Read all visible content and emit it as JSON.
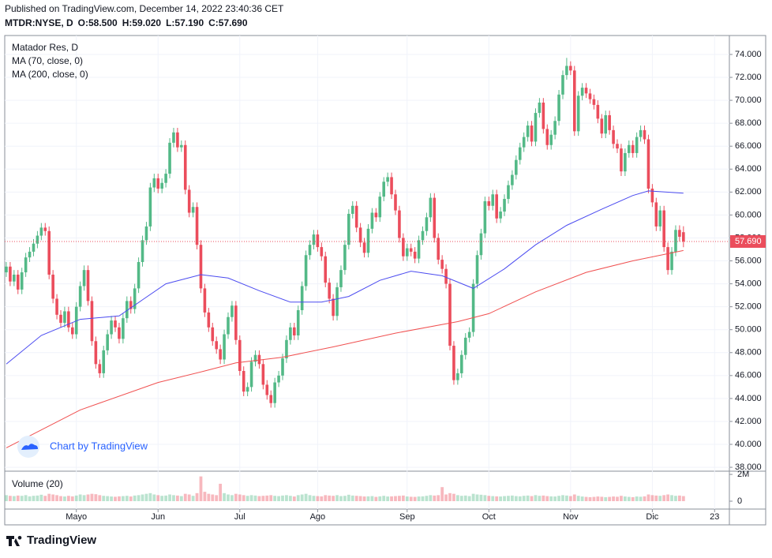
{
  "header": {
    "published": "Published on TradingView.com, December 14, 2022 23:40:36 CET",
    "symbol": "MTDR:NYSE, D",
    "ohlc_labels": [
      "O:58.500",
      "H:59.020",
      "L:57.190",
      "C:57.690"
    ]
  },
  "footer": {
    "brand": "TradingView"
  },
  "chart_data": {
    "type": "candlestick",
    "title": "Matador Res, D",
    "watermark": "Chart by TradingView",
    "up_color": "#53b987",
    "down_color": "#eb4d5c",
    "grid": true,
    "ylim": [
      37.73,
      75.65
    ],
    "yticks": [
      {
        "value": 38,
        "label": "38.000"
      },
      {
        "value": 40,
        "label": "40.000"
      },
      {
        "value": 42,
        "label": "42.000"
      },
      {
        "value": 44,
        "label": "44.000"
      },
      {
        "value": 46,
        "label": "46.000"
      },
      {
        "value": 48,
        "label": "48.000"
      },
      {
        "value": 50,
        "label": "50.000"
      },
      {
        "value": 52,
        "label": "52.000"
      },
      {
        "value": 54,
        "label": "54.000"
      },
      {
        "value": 56,
        "label": "56.000"
      },
      {
        "value": 58,
        "label": "58.000"
      },
      {
        "value": 60,
        "label": "60.000"
      },
      {
        "value": 62,
        "label": "62.000"
      },
      {
        "value": 64,
        "label": "64.000"
      },
      {
        "value": 66,
        "label": "66.000"
      },
      {
        "value": 68,
        "label": "68.000"
      },
      {
        "value": 70,
        "label": "70.000"
      },
      {
        "value": 72,
        "label": "72.000"
      },
      {
        "value": 74,
        "label": "74.000"
      }
    ],
    "xlim": [
      -0.4,
      185.8
    ],
    "xticks": [
      {
        "value": 18,
        "label": "Mayo"
      },
      {
        "value": 39,
        "label": "Jun"
      },
      {
        "value": 60,
        "label": "Jul"
      },
      {
        "value": 80,
        "label": "Ago"
      },
      {
        "value": 103,
        "label": "Sep"
      },
      {
        "value": 124,
        "label": "Oct"
      },
      {
        "value": 145,
        "label": "Nov"
      },
      {
        "value": 166,
        "label": "Dic"
      },
      {
        "value": 182,
        "label": "23"
      }
    ],
    "candles": [
      [
        55.0,
        55.9,
        54.6,
        55.5
      ],
      [
        55.5,
        55.9,
        53.8,
        54.2
      ],
      [
        54.2,
        55.2,
        53.8,
        54.8
      ],
      [
        54.8,
        55.2,
        53.1,
        53.5
      ],
      [
        53.5,
        55.4,
        53.1,
        55.0
      ],
      [
        55.0,
        56.7,
        54.6,
        56.3
      ],
      [
        56.3,
        57.2,
        55.9,
        56.8
      ],
      [
        56.8,
        57.9,
        56.4,
        57.5
      ],
      [
        57.5,
        58.6,
        57.1,
        58.2
      ],
      [
        58.2,
        59.3,
        57.8,
        58.9
      ],
      [
        58.9,
        59.3,
        58.2,
        58.6
      ],
      [
        58.6,
        59.0,
        54.4,
        54.8
      ],
      [
        54.8,
        55.2,
        52.3,
        52.7
      ],
      [
        52.7,
        53.1,
        50.9,
        51.3
      ],
      [
        51.3,
        51.7,
        50.2,
        50.6
      ],
      [
        50.6,
        52.0,
        50.2,
        51.6
      ],
      [
        51.6,
        52.0,
        49.8,
        50.2
      ],
      [
        50.2,
        50.6,
        49.2,
        49.6
      ],
      [
        49.6,
        52.4,
        49.2,
        52.0
      ],
      [
        52.0,
        54.2,
        51.6,
        53.8
      ],
      [
        53.8,
        55.6,
        53.4,
        55.2
      ],
      [
        55.2,
        55.6,
        52.1,
        52.5
      ],
      [
        52.5,
        52.9,
        48.6,
        49.0
      ],
      [
        49.0,
        49.4,
        46.6,
        47.0
      ],
      [
        47.0,
        47.4,
        45.8,
        46.2
      ],
      [
        46.2,
        48.6,
        45.8,
        48.2
      ],
      [
        48.2,
        50.0,
        47.8,
        49.6
      ],
      [
        49.6,
        51.2,
        49.2,
        50.8
      ],
      [
        50.8,
        51.2,
        49.8,
        50.2
      ],
      [
        50.2,
        50.6,
        48.8,
        49.2
      ],
      [
        49.2,
        51.4,
        48.8,
        51.0
      ],
      [
        51.0,
        52.9,
        50.6,
        52.5
      ],
      [
        52.5,
        52.9,
        51.4,
        51.8
      ],
      [
        51.8,
        54.0,
        51.4,
        53.6
      ],
      [
        53.6,
        56.3,
        53.2,
        55.9
      ],
      [
        55.9,
        58.2,
        55.5,
        57.8
      ],
      [
        57.8,
        59.4,
        57.4,
        59.0
      ],
      [
        59.0,
        62.8,
        58.6,
        62.4
      ],
      [
        62.4,
        63.6,
        62.0,
        63.2
      ],
      [
        63.2,
        63.6,
        61.9,
        62.3
      ],
      [
        62.3,
        63.2,
        61.9,
        62.8
      ],
      [
        62.8,
        64.0,
        62.4,
        63.6
      ],
      [
        63.6,
        66.7,
        63.2,
        66.3
      ],
      [
        66.3,
        67.6,
        65.9,
        67.2
      ],
      [
        67.2,
        67.6,
        65.5,
        65.9
      ],
      [
        65.9,
        66.5,
        65.5,
        66.1
      ],
      [
        66.1,
        66.5,
        61.8,
        62.2
      ],
      [
        62.2,
        62.6,
        59.8,
        60.2
      ],
      [
        60.2,
        61.1,
        59.8,
        60.7
      ],
      [
        60.7,
        61.1,
        57.0,
        57.4
      ],
      [
        57.4,
        57.8,
        53.2,
        53.6
      ],
      [
        53.6,
        54.0,
        51.1,
        51.5
      ],
      [
        51.5,
        51.9,
        49.8,
        50.2
      ],
      [
        50.2,
        50.6,
        48.6,
        49.0
      ],
      [
        49.0,
        49.4,
        47.9,
        48.3
      ],
      [
        48.3,
        48.7,
        47.0,
        47.4
      ],
      [
        47.4,
        50.0,
        47.0,
        49.6
      ],
      [
        49.6,
        51.5,
        49.2,
        51.1
      ],
      [
        51.1,
        52.5,
        50.7,
        52.1
      ],
      [
        52.1,
        52.5,
        48.7,
        49.1
      ],
      [
        49.1,
        49.5,
        46.0,
        46.4
      ],
      [
        46.4,
        46.8,
        44.2,
        44.6
      ],
      [
        44.6,
        45.4,
        44.2,
        45.0
      ],
      [
        45.0,
        47.6,
        44.6,
        47.2
      ],
      [
        47.2,
        48.2,
        46.8,
        47.8
      ],
      [
        47.8,
        48.2,
        46.6,
        47.0
      ],
      [
        47.0,
        47.4,
        44.8,
        45.2
      ],
      [
        45.2,
        45.6,
        43.9,
        44.3
      ],
      [
        44.3,
        44.7,
        43.2,
        43.6
      ],
      [
        43.6,
        45.8,
        43.2,
        45.4
      ],
      [
        45.4,
        46.4,
        45.0,
        46.0
      ],
      [
        46.0,
        47.9,
        45.6,
        47.5
      ],
      [
        47.5,
        49.5,
        47.1,
        49.1
      ],
      [
        49.1,
        50.6,
        48.7,
        50.2
      ],
      [
        50.2,
        50.6,
        49.1,
        49.5
      ],
      [
        49.5,
        52.1,
        49.1,
        51.7
      ],
      [
        51.7,
        54.2,
        51.3,
        53.8
      ],
      [
        53.8,
        56.9,
        53.4,
        56.5
      ],
      [
        56.5,
        57.8,
        56.1,
        57.4
      ],
      [
        57.4,
        58.7,
        57.0,
        58.3
      ],
      [
        58.3,
        58.7,
        56.8,
        57.2
      ],
      [
        57.2,
        57.6,
        56.0,
        56.4
      ],
      [
        56.4,
        56.8,
        53.7,
        54.1
      ],
      [
        54.1,
        54.5,
        52.3,
        52.7
      ],
      [
        52.7,
        53.1,
        50.8,
        51.2
      ],
      [
        51.2,
        54.1,
        50.8,
        53.7
      ],
      [
        53.7,
        55.6,
        53.3,
        55.2
      ],
      [
        55.2,
        57.8,
        54.8,
        57.4
      ],
      [
        57.4,
        60.5,
        57.0,
        60.1
      ],
      [
        60.1,
        61.2,
        59.7,
        60.8
      ],
      [
        60.8,
        61.2,
        58.5,
        58.9
      ],
      [
        58.9,
        59.3,
        57.2,
        57.6
      ],
      [
        57.6,
        58.0,
        56.3,
        56.7
      ],
      [
        56.7,
        59.2,
        56.3,
        58.8
      ],
      [
        58.8,
        60.6,
        58.4,
        60.2
      ],
      [
        60.2,
        60.6,
        59.4,
        59.8
      ],
      [
        59.8,
        62.0,
        59.4,
        61.6
      ],
      [
        61.6,
        63.3,
        61.2,
        62.9
      ],
      [
        62.9,
        63.7,
        62.5,
        63.3
      ],
      [
        63.3,
        63.7,
        61.4,
        61.8
      ],
      [
        61.8,
        62.2,
        60.0,
        60.4
      ],
      [
        60.4,
        60.8,
        57.6,
        58.0
      ],
      [
        58.0,
        58.4,
        56.0,
        56.4
      ],
      [
        56.4,
        57.5,
        56.0,
        57.1
      ],
      [
        57.1,
        57.5,
        56.4,
        56.8
      ],
      [
        56.8,
        57.2,
        55.8,
        56.2
      ],
      [
        56.2,
        58.2,
        55.8,
        57.8
      ],
      [
        57.8,
        59.0,
        57.4,
        58.6
      ],
      [
        58.6,
        60.2,
        58.2,
        59.8
      ],
      [
        59.8,
        61.9,
        59.4,
        61.5
      ],
      [
        61.5,
        61.9,
        57.6,
        58.0
      ],
      [
        58.0,
        58.4,
        55.7,
        56.1
      ],
      [
        56.1,
        56.5,
        54.9,
        55.3
      ],
      [
        55.3,
        55.7,
        53.6,
        54.0
      ],
      [
        54.0,
        54.4,
        48.2,
        48.6
      ],
      [
        48.6,
        49.0,
        45.2,
        45.6
      ],
      [
        45.6,
        46.6,
        45.2,
        46.2
      ],
      [
        46.2,
        48.2,
        45.8,
        47.8
      ],
      [
        47.8,
        49.7,
        47.4,
        49.3
      ],
      [
        49.3,
        50.2,
        48.9,
        49.8
      ],
      [
        49.8,
        54.4,
        49.4,
        54.0
      ],
      [
        54.0,
        56.9,
        53.6,
        56.5
      ],
      [
        56.5,
        58.8,
        56.1,
        58.4
      ],
      [
        58.4,
        61.6,
        58.0,
        61.2
      ],
      [
        61.2,
        61.6,
        60.4,
        60.8
      ],
      [
        60.8,
        62.2,
        60.4,
        61.8
      ],
      [
        61.8,
        62.2,
        59.3,
        59.7
      ],
      [
        59.7,
        60.7,
        59.3,
        60.3
      ],
      [
        60.3,
        61.8,
        59.9,
        61.4
      ],
      [
        61.4,
        63.0,
        61.0,
        62.6
      ],
      [
        62.6,
        63.9,
        62.2,
        63.5
      ],
      [
        63.5,
        65.2,
        63.1,
        64.8
      ],
      [
        64.8,
        66.3,
        64.4,
        65.9
      ],
      [
        65.9,
        67.2,
        65.5,
        66.8
      ],
      [
        66.8,
        68.2,
        66.4,
        67.8
      ],
      [
        67.8,
        68.2,
        66.0,
        66.4
      ],
      [
        66.4,
        69.3,
        66.0,
        68.9
      ],
      [
        68.9,
        70.2,
        68.5,
        69.8
      ],
      [
        69.8,
        70.2,
        67.1,
        67.5
      ],
      [
        67.5,
        67.9,
        65.7,
        66.1
      ],
      [
        66.1,
        67.4,
        65.7,
        67.0
      ],
      [
        67.0,
        68.6,
        66.6,
        68.2
      ],
      [
        68.2,
        70.9,
        67.8,
        70.5
      ],
      [
        70.5,
        72.6,
        70.1,
        72.2
      ],
      [
        72.2,
        73.7,
        71.8,
        73.0
      ],
      [
        73.0,
        73.4,
        72.2,
        72.6
      ],
      [
        72.6,
        73.0,
        66.9,
        67.3
      ],
      [
        67.3,
        70.8,
        66.9,
        70.4
      ],
      [
        70.4,
        71.5,
        70.0,
        71.1
      ],
      [
        71.1,
        71.5,
        70.2,
        70.6
      ],
      [
        70.6,
        71.0,
        69.7,
        70.1
      ],
      [
        70.1,
        70.5,
        69.2,
        69.6
      ],
      [
        69.6,
        70.0,
        68.0,
        68.4
      ],
      [
        68.4,
        68.8,
        66.7,
        67.1
      ],
      [
        67.1,
        69.1,
        66.7,
        68.7
      ],
      [
        68.7,
        69.1,
        67.0,
        67.4
      ],
      [
        67.4,
        67.8,
        65.8,
        66.2
      ],
      [
        66.2,
        66.6,
        65.4,
        65.8
      ],
      [
        65.8,
        66.2,
        63.4,
        63.8
      ],
      [
        63.8,
        65.8,
        63.4,
        65.4
      ],
      [
        65.4,
        66.5,
        65.0,
        66.1
      ],
      [
        66.1,
        66.5,
        65.0,
        65.4
      ],
      [
        65.4,
        67.2,
        65.0,
        66.8
      ],
      [
        66.8,
        67.8,
        66.4,
        67.4
      ],
      [
        67.4,
        67.8,
        66.2,
        66.6
      ],
      [
        66.6,
        67.0,
        61.9,
        62.3
      ],
      [
        62.3,
        62.7,
        60.7,
        61.1
      ],
      [
        61.1,
        61.5,
        58.6,
        59.0
      ],
      [
        59.0,
        60.8,
        58.6,
        60.4
      ],
      [
        60.4,
        60.8,
        56.8,
        57.2
      ],
      [
        57.2,
        57.6,
        54.8,
        55.2
      ],
      [
        55.2,
        57.2,
        54.8,
        56.8
      ],
      [
        56.8,
        59.1,
        56.4,
        58.7
      ],
      [
        58.7,
        59.1,
        57.7,
        58.1
      ],
      [
        58.5,
        59.02,
        57.19,
        57.69
      ]
    ],
    "overlays": [
      {
        "name": "MA (70, close, 0)",
        "color": "#4b4bf0",
        "x": [
          0,
          9,
          19,
          29,
          35,
          41,
          50,
          57,
          65,
          73,
          81,
          88,
          96,
          104,
          112,
          120,
          128,
          136,
          144,
          153,
          161,
          165,
          174
        ],
        "values": [
          47.0,
          49.5,
          50.9,
          51.2,
          52.6,
          54.0,
          54.8,
          54.5,
          53.4,
          52.4,
          52.4,
          52.9,
          54.3,
          55.1,
          54.7,
          53.6,
          55.3,
          57.4,
          59.1,
          60.5,
          61.7,
          62.1,
          61.9
        ]
      },
      {
        "name": "MA (200, close, 0)",
        "color": "#f05050",
        "x": [
          0,
          19,
          39,
          51,
          59,
          71,
          84,
          100,
          116,
          124,
          136,
          149,
          161,
          174
        ],
        "values": [
          39.7,
          43.0,
          45.4,
          46.4,
          47.1,
          47.6,
          48.5,
          49.7,
          50.7,
          51.4,
          53.3,
          55.0,
          56.0,
          56.9
        ]
      }
    ],
    "last_price": {
      "value": 57.69,
      "label": "57.690"
    },
    "volume": {
      "name": "Volume (20)",
      "ylim": [
        -0.59,
        2.24
      ],
      "yticks": [
        {
          "value": 2,
          "label": "2M"
        },
        0
      ],
      "values": [
        0.45,
        0.4,
        0.38,
        0.42,
        0.4,
        0.45,
        0.36,
        0.4,
        0.42,
        0.48,
        0.4,
        0.55,
        0.5,
        0.45,
        0.38,
        0.35,
        0.4,
        0.36,
        0.42,
        0.5,
        0.45,
        0.5,
        0.55,
        0.52,
        0.45,
        0.4,
        0.38,
        0.35,
        0.33,
        0.36,
        0.38,
        0.4,
        0.35,
        0.42,
        0.45,
        0.5,
        0.55,
        0.6,
        0.5,
        0.45,
        0.4,
        0.42,
        0.5,
        0.45,
        0.42,
        0.38,
        0.55,
        0.5,
        0.4,
        0.6,
        1.85,
        0.7,
        0.55,
        0.5,
        0.45,
        1.3,
        0.6,
        0.5,
        0.45,
        0.55,
        0.5,
        0.45,
        0.4,
        0.45,
        0.42,
        0.38,
        0.4,
        0.42,
        0.45,
        0.4,
        0.38,
        0.42,
        0.45,
        0.4,
        0.35,
        0.45,
        0.5,
        0.55,
        0.45,
        0.4,
        0.38,
        0.36,
        0.45,
        0.42,
        0.4,
        0.45,
        0.38,
        0.4,
        0.48,
        0.42,
        0.4,
        0.38,
        0.35,
        0.36,
        0.38,
        0.32,
        0.36,
        0.4,
        0.35,
        0.36,
        0.38,
        0.4,
        0.42,
        0.35,
        0.33,
        0.32,
        0.35,
        0.36,
        0.4,
        0.45,
        0.42,
        0.45,
        1.05,
        0.5,
        0.6,
        0.55,
        0.45,
        0.4,
        0.42,
        0.38,
        0.55,
        0.5,
        0.48,
        0.45,
        0.4,
        0.38,
        0.36,
        0.35,
        0.38,
        0.4,
        0.42,
        0.38,
        0.36,
        0.4,
        0.42,
        0.38,
        0.45,
        0.4,
        0.42,
        0.38,
        0.36,
        0.35,
        0.4,
        0.45,
        0.42,
        0.38,
        0.5,
        0.4,
        0.35,
        0.32,
        0.3,
        0.32,
        0.35,
        0.33,
        0.3,
        0.32,
        0.35,
        0.33,
        0.4,
        0.35,
        0.32,
        0.3,
        0.35,
        0.33,
        0.36,
        0.5,
        0.45,
        0.42,
        0.4,
        0.45,
        0.5,
        0.45,
        0.4,
        0.42,
        0.38
      ]
    }
  }
}
